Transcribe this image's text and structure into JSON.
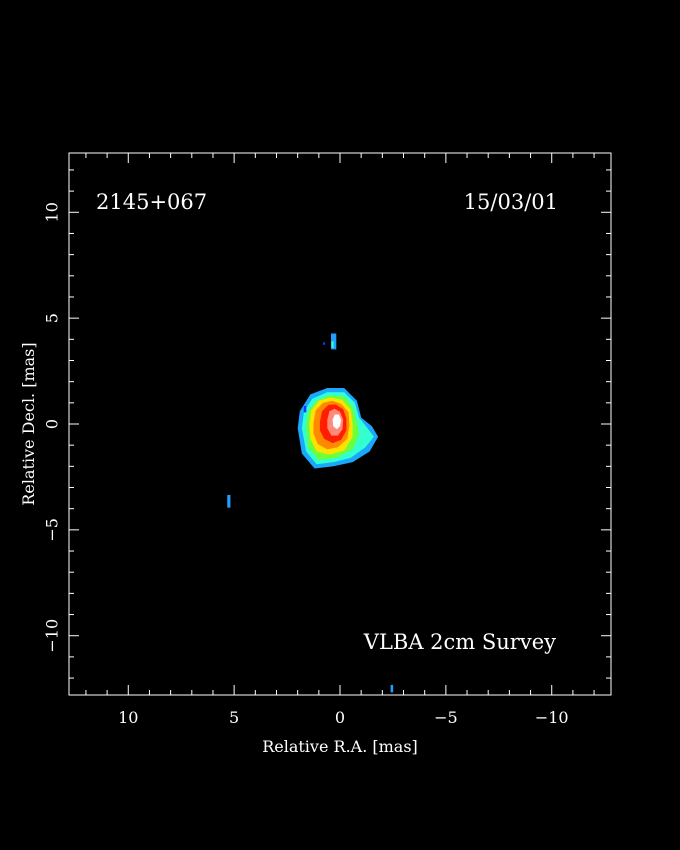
{
  "chart_data": {
    "type": "heatmap",
    "title": "",
    "xlabel": "Relative R.A. [mas]",
    "ylabel": "Relative Decl. [mas]",
    "xlim": [
      12.8,
      -12.8
    ],
    "ylim": [
      -12.8,
      12.8
    ],
    "x_major_ticks": [
      10,
      5,
      0,
      -5,
      -10
    ],
    "x_tick_labels": [
      "10",
      "5",
      "0",
      "−5",
      "−10"
    ],
    "y_major_ticks": [
      10,
      5,
      0,
      -5,
      -10
    ],
    "y_tick_labels": [
      "10",
      "5",
      "0",
      "−5",
      "−10"
    ],
    "minor_tick_step": 1,
    "grid": false,
    "annotations": {
      "source_name": "2145+067",
      "epoch": "15/03/01",
      "survey": "VLBA 2cm Survey"
    },
    "colors": {
      "background": "#000000",
      "frame": "#ffffff",
      "colormap": [
        "#0a3cff",
        "#1fa0ff",
        "#33ffd0",
        "#6cff3c",
        "#ffe200",
        "#ff8a00",
        "#ff1e00",
        "#ff8a7a",
        "#ffffff"
      ]
    },
    "main_component": {
      "contours": [
        {
          "level": "#1aa8ff",
          "points": [
            [
              2.0,
              -0.2
            ],
            [
              1.9,
              0.6
            ],
            [
              1.4,
              1.4
            ],
            [
              0.6,
              1.7
            ],
            [
              -0.2,
              1.7
            ],
            [
              -0.8,
              1.1
            ],
            [
              -1.0,
              0.3
            ],
            [
              -1.5,
              -0.1
            ],
            [
              -1.8,
              -0.6
            ],
            [
              -1.4,
              -1.3
            ],
            [
              -0.6,
              -1.8
            ],
            [
              0.3,
              -2.0
            ],
            [
              1.2,
              -2.1
            ],
            [
              1.8,
              -1.4
            ]
          ]
        },
        {
          "level": "#33ffd0",
          "points": [
            [
              1.8,
              -0.2
            ],
            [
              1.7,
              0.6
            ],
            [
              1.3,
              1.2
            ],
            [
              0.6,
              1.5
            ],
            [
              -0.2,
              1.5
            ],
            [
              -0.7,
              1.0
            ],
            [
              -0.9,
              0.3
            ],
            [
              -1.3,
              -0.2
            ],
            [
              -1.6,
              -0.6
            ],
            [
              -1.2,
              -1.1
            ],
            [
              -0.5,
              -1.6
            ],
            [
              0.3,
              -1.8
            ],
            [
              1.1,
              -1.9
            ],
            [
              1.6,
              -1.3
            ]
          ]
        },
        {
          "level": "#6cff3c",
          "points": [
            [
              1.6,
              -0.1
            ],
            [
              1.5,
              0.6
            ],
            [
              1.1,
              1.1
            ],
            [
              0.5,
              1.35
            ],
            [
              -0.2,
              1.3
            ],
            [
              -0.6,
              0.8
            ],
            [
              -0.8,
              0.1
            ],
            [
              -0.9,
              -0.5
            ],
            [
              -0.6,
              -1.2
            ],
            [
              0.2,
              -1.6
            ],
            [
              1.0,
              -1.7
            ],
            [
              1.5,
              -1.1
            ]
          ]
        },
        {
          "level": "#ffe200",
          "points": [
            [
              1.45,
              0.0
            ],
            [
              1.35,
              0.65
            ],
            [
              1.0,
              1.1
            ],
            [
              0.45,
              1.25
            ],
            [
              -0.1,
              1.15
            ],
            [
              -0.5,
              0.7
            ],
            [
              -0.6,
              0.0
            ],
            [
              -0.6,
              -0.6
            ],
            [
              -0.2,
              -1.25
            ],
            [
              0.5,
              -1.45
            ],
            [
              1.1,
              -1.3
            ],
            [
              1.4,
              -0.7
            ]
          ]
        },
        {
          "level": "#ff8a00",
          "points": [
            [
              1.25,
              0.05
            ],
            [
              1.15,
              0.65
            ],
            [
              0.8,
              1.0
            ],
            [
              0.35,
              1.1
            ],
            [
              -0.05,
              0.95
            ],
            [
              -0.4,
              0.55
            ],
            [
              -0.45,
              -0.05
            ],
            [
              -0.35,
              -0.7
            ],
            [
              0.1,
              -1.1
            ],
            [
              0.6,
              -1.2
            ],
            [
              1.05,
              -0.95
            ],
            [
              1.25,
              -0.45
            ]
          ]
        },
        {
          "level": "#ff1e00",
          "points": [
            [
              0.95,
              0.1
            ],
            [
              0.85,
              0.6
            ],
            [
              0.55,
              0.9
            ],
            [
              0.2,
              0.92
            ],
            [
              -0.15,
              0.7
            ],
            [
              -0.3,
              0.25
            ],
            [
              -0.3,
              -0.3
            ],
            [
              -0.05,
              -0.75
            ],
            [
              0.35,
              -0.9
            ],
            [
              0.75,
              -0.7
            ],
            [
              0.95,
              -0.3
            ]
          ]
        },
        {
          "level": "#ff8a7a",
          "points": [
            [
              0.6,
              0.2
            ],
            [
              0.5,
              0.6
            ],
            [
              0.25,
              0.72
            ],
            [
              0.0,
              0.58
            ],
            [
              -0.15,
              0.2
            ],
            [
              -0.12,
              -0.25
            ],
            [
              0.1,
              -0.55
            ],
            [
              0.4,
              -0.55
            ],
            [
              0.6,
              -0.2
            ]
          ]
        },
        {
          "level": "#ffffff",
          "points": [
            [
              0.35,
              0.2
            ],
            [
              0.25,
              0.45
            ],
            [
              0.05,
              0.45
            ],
            [
              -0.05,
              0.2
            ],
            [
              0.0,
              -0.1
            ],
            [
              0.15,
              -0.25
            ],
            [
              0.32,
              -0.1
            ]
          ]
        }
      ],
      "east_lobe": {
        "ra": -1.2,
        "dec": -0.7,
        "rx": 0.45,
        "ry": 0.35,
        "colors": [
          "#33ffd0",
          "#6cff3c"
        ]
      }
    },
    "isolated_pixels": [
      {
        "ra": 0.3,
        "dec": 3.9,
        "w": 0.25,
        "h": 0.75,
        "color": "#1fa0ff"
      },
      {
        "ra": 0.35,
        "dec": 3.75,
        "w": 0.1,
        "h": 0.3,
        "color": "#33ffd0"
      },
      {
        "ra": 0.75,
        "dec": 3.8,
        "w": 0.1,
        "h": 0.12,
        "color": "#0a3cff"
      },
      {
        "ra": 1.65,
        "dec": 0.7,
        "w": 0.12,
        "h": 0.3,
        "color": "#0a3cff"
      },
      {
        "ra": 5.25,
        "dec": -3.65,
        "w": 0.15,
        "h": 0.6,
        "color": "#1fa0ff"
      },
      {
        "ra": -2.45,
        "dec": -12.5,
        "w": 0.12,
        "h": 0.35,
        "color": "#1fa0ff"
      }
    ]
  }
}
